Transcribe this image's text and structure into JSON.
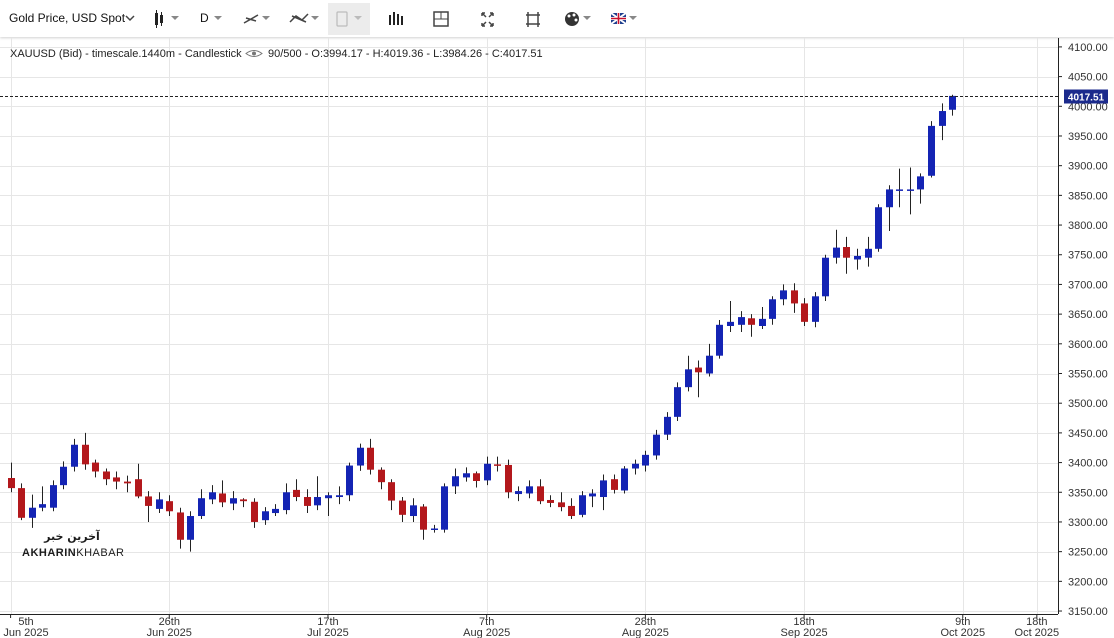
{
  "toolbar": {
    "title": "Gold Price, USD Spot",
    "interval": "D"
  },
  "header": {
    "symbol": "XAUUSD (Bid) - timescale.1440m - Candlestick",
    "count": "90/500",
    "ohlc_labels": [
      " - O:",
      " - H:",
      " - L:",
      " - C:"
    ]
  },
  "watermark": {
    "logo": "آخرین خبر",
    "name_bold": "AKHARIN",
    "name_light": "KHABAR"
  },
  "chart_data": {
    "type": "candlestick",
    "up_color": "#1424b4",
    "down_color": "#b3181c",
    "grid": true,
    "x": [
      "2025-06-05",
      "2025-06-06",
      "2025-06-09",
      "2025-06-10",
      "2025-06-11",
      "2025-06-12",
      "2025-06-13",
      "2025-06-16",
      "2025-06-17",
      "2025-06-18",
      "2025-06-19",
      "2025-06-20",
      "2025-06-23",
      "2025-06-24",
      "2025-06-25",
      "2025-06-26",
      "2025-06-27",
      "2025-06-30",
      "2025-07-01",
      "2025-07-02",
      "2025-07-03",
      "2025-07-04",
      "2025-07-07",
      "2025-07-08",
      "2025-07-09",
      "2025-07-10",
      "2025-07-11",
      "2025-07-14",
      "2025-07-15",
      "2025-07-16",
      "2025-07-17",
      "2025-07-18",
      "2025-07-21",
      "2025-07-22",
      "2025-07-23",
      "2025-07-24",
      "2025-07-25",
      "2025-07-28",
      "2025-07-29",
      "2025-07-30",
      "2025-07-31",
      "2025-08-01",
      "2025-08-04",
      "2025-08-05",
      "2025-08-06",
      "2025-08-07",
      "2025-08-08",
      "2025-08-11",
      "2025-08-12",
      "2025-08-13",
      "2025-08-14",
      "2025-08-15",
      "2025-08-18",
      "2025-08-19",
      "2025-08-20",
      "2025-08-21",
      "2025-08-22",
      "2025-08-25",
      "2025-08-26",
      "2025-08-27",
      "2025-08-28",
      "2025-08-29",
      "2025-09-01",
      "2025-09-02",
      "2025-09-03",
      "2025-09-04",
      "2025-09-05",
      "2025-09-08",
      "2025-09-09",
      "2025-09-10",
      "2025-09-11",
      "2025-09-12",
      "2025-09-15",
      "2025-09-16",
      "2025-09-17",
      "2025-09-18",
      "2025-09-19",
      "2025-09-22",
      "2025-09-23",
      "2025-09-24",
      "2025-09-25",
      "2025-09-26",
      "2025-09-29",
      "2025-09-30",
      "2025-10-01",
      "2025-10-02",
      "2025-10-03",
      "2025-10-06",
      "2025-10-07",
      "2025-10-08"
    ],
    "open": [
      3374,
      3357,
      3307,
      3324,
      3324,
      3362,
      3393,
      3430,
      3400,
      3385,
      3375,
      3368,
      3372,
      3343,
      3322,
      3335,
      3316,
      3270,
      3310,
      3338,
      3348,
      3331,
      3338,
      3334,
      3303,
      3315,
      3320,
      3354,
      3342,
      3328,
      3340,
      3342,
      3345,
      3395,
      3425,
      3388,
      3367,
      3336,
      3310,
      3326,
      3287,
      3287,
      3360,
      3375,
      3382,
      3370,
      3397,
      3396,
      3347,
      3348,
      3360,
      3337,
      3333,
      3327,
      3312,
      3343,
      3342,
      3372,
      3353,
      3390,
      3395,
      3412,
      3447,
      3477,
      3527,
      3560,
      3550,
      3580,
      3630,
      3632,
      3643,
      3630,
      3642,
      3675,
      3690,
      3668,
      3637,
      3680,
      3745,
      3763,
      3742,
      3745,
      3760,
      3830,
      3858,
      3858,
      3860,
      3883,
      3967,
      3994.17
    ],
    "high": [
      3400,
      3365,
      3346,
      3360,
      3370,
      3402,
      3440,
      3450,
      3405,
      3390,
      3385,
      3378,
      3398,
      3352,
      3350,
      3345,
      3324,
      3318,
      3355,
      3362,
      3370,
      3352,
      3340,
      3340,
      3325,
      3330,
      3365,
      3372,
      3355,
      3377,
      3350,
      3360,
      3400,
      3432,
      3440,
      3392,
      3372,
      3342,
      3340,
      3330,
      3295,
      3365,
      3390,
      3392,
      3385,
      3410,
      3410,
      3405,
      3360,
      3370,
      3372,
      3345,
      3350,
      3340,
      3352,
      3355,
      3380,
      3380,
      3394,
      3405,
      3420,
      3455,
      3485,
      3535,
      3580,
      3572,
      3600,
      3640,
      3672,
      3655,
      3650,
      3662,
      3680,
      3700,
      3702,
      3677,
      3687,
      3750,
      3792,
      3780,
      3760,
      3780,
      3835,
      3867,
      3895,
      3897,
      3887,
      3975,
      4005,
      4019.36
    ],
    "low": [
      3350,
      3303,
      3290,
      3318,
      3318,
      3355,
      3385,
      3388,
      3375,
      3362,
      3355,
      3350,
      3340,
      3300,
      3315,
      3310,
      3255,
      3250,
      3305,
      3330,
      3325,
      3320,
      3325,
      3290,
      3295,
      3310,
      3313,
      3335,
      3315,
      3320,
      3310,
      3330,
      3335,
      3386,
      3380,
      3355,
      3320,
      3300,
      3300,
      3270,
      3282,
      3282,
      3347,
      3368,
      3358,
      3362,
      3385,
      3340,
      3335,
      3340,
      3330,
      3325,
      3318,
      3305,
      3308,
      3325,
      3320,
      3348,
      3348,
      3380,
      3385,
      3405,
      3438,
      3470,
      3520,
      3510,
      3545,
      3575,
      3620,
      3620,
      3612,
      3625,
      3632,
      3665,
      3652,
      3630,
      3628,
      3672,
      3735,
      3718,
      3725,
      3730,
      3755,
      3790,
      3830,
      3818,
      3836,
      3880,
      3943,
      3984.26
    ],
    "close": [
      3357,
      3307,
      3324,
      3330,
      3362,
      3393,
      3430,
      3397,
      3385,
      3372,
      3368,
      3365,
      3343,
      3327,
      3338,
      3318,
      3270,
      3310,
      3340,
      3350,
      3333,
      3340,
      3335,
      3300,
      3318,
      3322,
      3350,
      3342,
      3327,
      3342,
      3345,
      3345,
      3395,
      3425,
      3388,
      3367,
      3336,
      3312,
      3328,
      3287,
      3289,
      3360,
      3377,
      3382,
      3369,
      3398,
      3395,
      3350,
      3352,
      3360,
      3335,
      3332,
      3325,
      3310,
      3345,
      3348,
      3370,
      3354,
      3390,
      3398,
      3413,
      3447,
      3477,
      3527,
      3557,
      3552,
      3580,
      3632,
      3637,
      3645,
      3632,
      3642,
      3675,
      3690,
      3668,
      3637,
      3680,
      3745,
      3762,
      3745,
      3748,
      3760,
      3830,
      3860,
      3860,
      3860,
      3882,
      3967,
      3992,
      4017.51
    ],
    "xlim": [
      "2025-06-04",
      "2025-10-22"
    ],
    "xticks": [
      {
        "value": "2025-06-05",
        "label": [
          "5th",
          "Jun 2025"
        ]
      },
      {
        "value": "2025-06-26",
        "label": [
          "26th",
          "Jun 2025"
        ]
      },
      {
        "value": "2025-07-17",
        "label": [
          "17th",
          "Jul 2025"
        ]
      },
      {
        "value": "2025-08-07",
        "label": [
          "7th",
          "Aug 2025"
        ]
      },
      {
        "value": "2025-08-28",
        "label": [
          "28th",
          "Aug 2025"
        ]
      },
      {
        "value": "2025-09-18",
        "label": [
          "18th",
          "Sep 2025"
        ]
      },
      {
        "value": "2025-10-09",
        "label": [
          "9th",
          "Oct 2025"
        ]
      },
      {
        "value": "2025-10-18",
        "label": [
          "18th",
          "Oct 2025"
        ]
      }
    ],
    "ylim": [
      3145,
      4115
    ],
    "yticks": [
      {
        "value": 3150,
        "label": "3150.00"
      },
      {
        "value": 3200,
        "label": "3200.00"
      },
      {
        "value": 3250,
        "label": "3250.00"
      },
      {
        "value": 3300,
        "label": "3300.00"
      },
      {
        "value": 3350,
        "label": "3350.00"
      },
      {
        "value": 3400,
        "label": "3400.00"
      },
      {
        "value": 3450,
        "label": "3450.00"
      },
      {
        "value": 3500,
        "label": "3500.00"
      },
      {
        "value": 3550,
        "label": "3550.00"
      },
      {
        "value": 3600,
        "label": "3600.00"
      },
      {
        "value": 3650,
        "label": "3650.00"
      },
      {
        "value": 3700,
        "label": "3700.00"
      },
      {
        "value": 3750,
        "label": "3750.00"
      },
      {
        "value": 3800,
        "label": "3800.00"
      },
      {
        "value": 3850,
        "label": "3850.00"
      },
      {
        "value": 3900,
        "label": "3900.00"
      },
      {
        "value": 3950,
        "label": "3950.00"
      },
      {
        "value": 4000,
        "label": "4000.00"
      },
      {
        "value": 4050,
        "label": "4050.00"
      },
      {
        "value": 4100,
        "label": "4100.00"
      }
    ]
  }
}
